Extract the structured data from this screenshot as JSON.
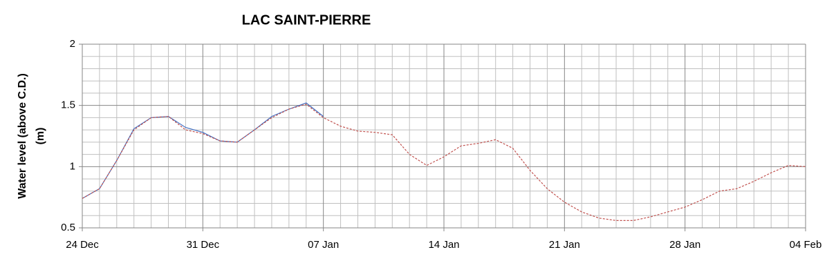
{
  "chart_data": {
    "type": "line",
    "title": "LAC SAINT-PIERRE",
    "y_label": [
      "Water level (above C.D.)",
      "(m)"
    ],
    "categories": [
      "24 Dec",
      null,
      null,
      null,
      null,
      null,
      null,
      "31 Dec",
      null,
      null,
      null,
      null,
      null,
      null,
      "07 Jan",
      null,
      null,
      null,
      null,
      null,
      null,
      "14 Jan",
      null,
      null,
      null,
      null,
      null,
      null,
      "21 Jan",
      null,
      null,
      null,
      null,
      null,
      null,
      "28 Jan",
      null,
      null,
      null,
      null,
      null,
      null,
      "04 Feb"
    ],
    "series": [
      {
        "color": "#4472c4",
        "dash": false,
        "values": [
          0.74,
          0.82,
          1.05,
          1.31,
          1.4,
          1.41,
          1.32,
          1.28,
          1.21,
          1.2,
          1.3,
          1.41,
          1.47,
          1.52,
          1.41,
          null,
          null,
          null,
          null,
          null,
          null,
          null,
          null,
          null,
          null,
          null,
          null,
          null,
          null,
          null,
          null,
          null,
          null,
          null,
          null,
          null,
          null,
          null,
          null,
          null,
          null,
          null,
          null
        ]
      },
      {
        "color": "#c0504d",
        "dash": true,
        "values": [
          0.74,
          0.82,
          1.05,
          1.3,
          1.4,
          1.41,
          1.3,
          1.27,
          1.21,
          1.2,
          1.3,
          1.4,
          1.47,
          1.51,
          1.4,
          1.33,
          1.29,
          1.28,
          1.26,
          1.1,
          1.01,
          1.08,
          1.17,
          1.19,
          1.22,
          1.15,
          0.97,
          0.82,
          0.71,
          0.63,
          0.58,
          0.56,
          0.56,
          0.59,
          0.63,
          0.67,
          0.73,
          0.8,
          0.82,
          0.88,
          0.95,
          1.01,
          1.0
        ]
      }
    ],
    "ylim": [
      0.5,
      2
    ],
    "yticks": [
      0.5,
      1,
      1.5,
      2
    ],
    "grid": true
  }
}
